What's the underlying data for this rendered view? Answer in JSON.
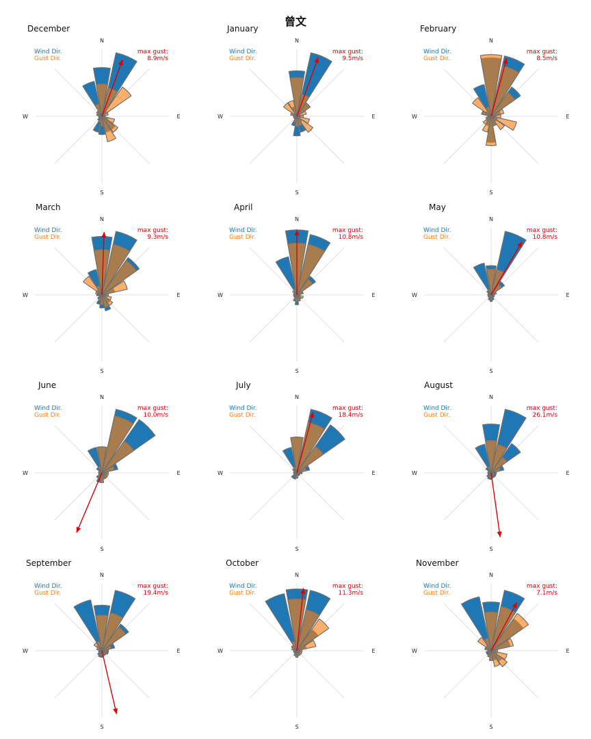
{
  "title": "曾文",
  "chart_data": {
    "type": "windrose",
    "directions": [
      "N",
      "NNE",
      "NE",
      "ENE",
      "E",
      "ESE",
      "SE",
      "SSE",
      "S",
      "SSW",
      "SW",
      "WSW",
      "W",
      "WNW",
      "NW",
      "NNW"
    ],
    "compass_labels": [
      "N",
      "E",
      "S",
      "W"
    ],
    "legend": {
      "wind": "Wind Dir.",
      "gust": "Gust Dir."
    },
    "colors": {
      "wind": "#1f77b4",
      "gust": "#ff7f0e",
      "arrow": "#e00000",
      "grid": "#d9d9d9",
      "edge": "#707070"
    },
    "gust_label": "max gust:",
    "radial_max": 100,
    "panels": [
      {
        "month": "December",
        "max_gust": "8.9m/s",
        "arrow_deg": 20,
        "arrow_len": 88,
        "wind": [
          75,
          100,
          10,
          5,
          5,
          10,
          25,
          25,
          28,
          25,
          8,
          5,
          5,
          8,
          10,
          55
        ],
        "gust": [
          50,
          45,
          55,
          10,
          5,
          20,
          30,
          40,
          15,
          10,
          5,
          5,
          5,
          8,
          10,
          20
        ]
      },
      {
        "month": "January",
        "max_gust": "9.5m/s",
        "arrow_deg": 20,
        "arrow_len": 92,
        "wind": [
          70,
          100,
          25,
          5,
          5,
          5,
          10,
          25,
          30,
          15,
          5,
          5,
          5,
          8,
          5,
          15
        ],
        "gust": [
          60,
          35,
          25,
          15,
          10,
          20,
          30,
          15,
          15,
          10,
          5,
          5,
          5,
          10,
          25,
          25
        ]
      },
      {
        "month": "February",
        "max_gust": "8.5m/s",
        "arrow_deg": 15,
        "arrow_len": 88,
        "wind": [
          90,
          95,
          55,
          15,
          8,
          10,
          10,
          15,
          40,
          15,
          10,
          8,
          5,
          15,
          10,
          50
        ],
        "gust": [
          95,
          80,
          45,
          20,
          15,
          40,
          25,
          15,
          45,
          25,
          15,
          8,
          5,
          15,
          35,
          15
        ]
      },
      {
        "month": "March",
        "max_gust": "9.3m/s",
        "arrow_deg": 2,
        "arrow_len": 92,
        "wind": [
          90,
          100,
          70,
          20,
          8,
          8,
          15,
          25,
          20,
          15,
          8,
          5,
          8,
          8,
          10,
          40
        ],
        "gust": [
          70,
          80,
          65,
          40,
          10,
          15,
          20,
          20,
          15,
          10,
          5,
          5,
          5,
          10,
          35,
          15
        ]
      },
      {
        "month": "April",
        "max_gust": "10.8m/s",
        "arrow_deg": 0,
        "arrow_len": 95,
        "wind": [
          100,
          95,
          35,
          10,
          5,
          5,
          8,
          10,
          15,
          10,
          5,
          5,
          5,
          5,
          5,
          60
        ],
        "gust": [
          80,
          80,
          30,
          10,
          5,
          10,
          8,
          10,
          10,
          8,
          5,
          5,
          5,
          5,
          8,
          10
        ]
      },
      {
        "month": "May",
        "max_gust": "10.8m/s",
        "arrow_deg": 30,
        "arrow_len": 90,
        "wind": [
          45,
          100,
          25,
          8,
          5,
          5,
          5,
          8,
          10,
          8,
          5,
          5,
          5,
          5,
          8,
          50
        ],
        "gust": [
          40,
          40,
          20,
          8,
          5,
          5,
          5,
          5,
          8,
          5,
          5,
          5,
          5,
          5,
          5,
          10
        ]
      },
      {
        "month": "June",
        "max_gust": "10.0m/s",
        "arrow_deg": 203,
        "arrow_len": 95,
        "wind": [
          40,
          100,
          100,
          25,
          8,
          8,
          10,
          10,
          15,
          15,
          10,
          5,
          5,
          5,
          10,
          40
        ],
        "gust": [
          40,
          90,
          60,
          20,
          10,
          10,
          10,
          10,
          15,
          10,
          8,
          5,
          5,
          5,
          5,
          10
        ]
      },
      {
        "month": "July",
        "max_gust": "18.4m/s",
        "arrow_deg": 15,
        "arrow_len": 92,
        "wind": [
          55,
          100,
          90,
          20,
          8,
          5,
          5,
          5,
          8,
          10,
          10,
          5,
          5,
          5,
          8,
          40
        ],
        "gust": [
          55,
          80,
          50,
          15,
          5,
          5,
          5,
          5,
          8,
          8,
          5,
          5,
          5,
          5,
          5,
          10
        ]
      },
      {
        "month": "August",
        "max_gust": "26.1m/s",
        "arrow_deg": 172,
        "arrow_len": 95,
        "wind": [
          75,
          100,
          55,
          20,
          8,
          8,
          8,
          8,
          10,
          10,
          8,
          5,
          5,
          5,
          10,
          45
        ],
        "gust": [
          50,
          45,
          30,
          15,
          5,
          5,
          5,
          5,
          8,
          8,
          5,
          5,
          5,
          5,
          5,
          10
        ]
      },
      {
        "month": "September",
        "max_gust": "19.4m/s",
        "arrow_deg": 167,
        "arrow_len": 95,
        "wind": [
          70,
          95,
          50,
          20,
          10,
          10,
          8,
          8,
          10,
          10,
          8,
          5,
          5,
          5,
          10,
          80
        ],
        "gust": [
          55,
          60,
          45,
          15,
          8,
          8,
          8,
          8,
          8,
          8,
          5,
          5,
          5,
          8,
          15,
          15
        ]
      },
      {
        "month": "October",
        "max_gust": "11.3m/s",
        "arrow_deg": 6,
        "arrow_len": 92,
        "wind": [
          95,
          95,
          40,
          15,
          5,
          5,
          5,
          8,
          10,
          8,
          5,
          5,
          5,
          5,
          10,
          90
        ],
        "gust": [
          80,
          65,
          60,
          30,
          8,
          8,
          8,
          8,
          10,
          8,
          5,
          5,
          5,
          8,
          10,
          15
        ]
      },
      {
        "month": "November",
        "max_gust": "7.1m/s",
        "arrow_deg": 28,
        "arrow_len": 80,
        "wind": [
          75,
          95,
          60,
          30,
          8,
          10,
          20,
          15,
          15,
          10,
          8,
          8,
          5,
          10,
          10,
          85
        ],
        "gust": [
          60,
          70,
          70,
          35,
          10,
          25,
          30,
          25,
          15,
          10,
          5,
          5,
          5,
          8,
          25,
          20
        ]
      }
    ]
  }
}
